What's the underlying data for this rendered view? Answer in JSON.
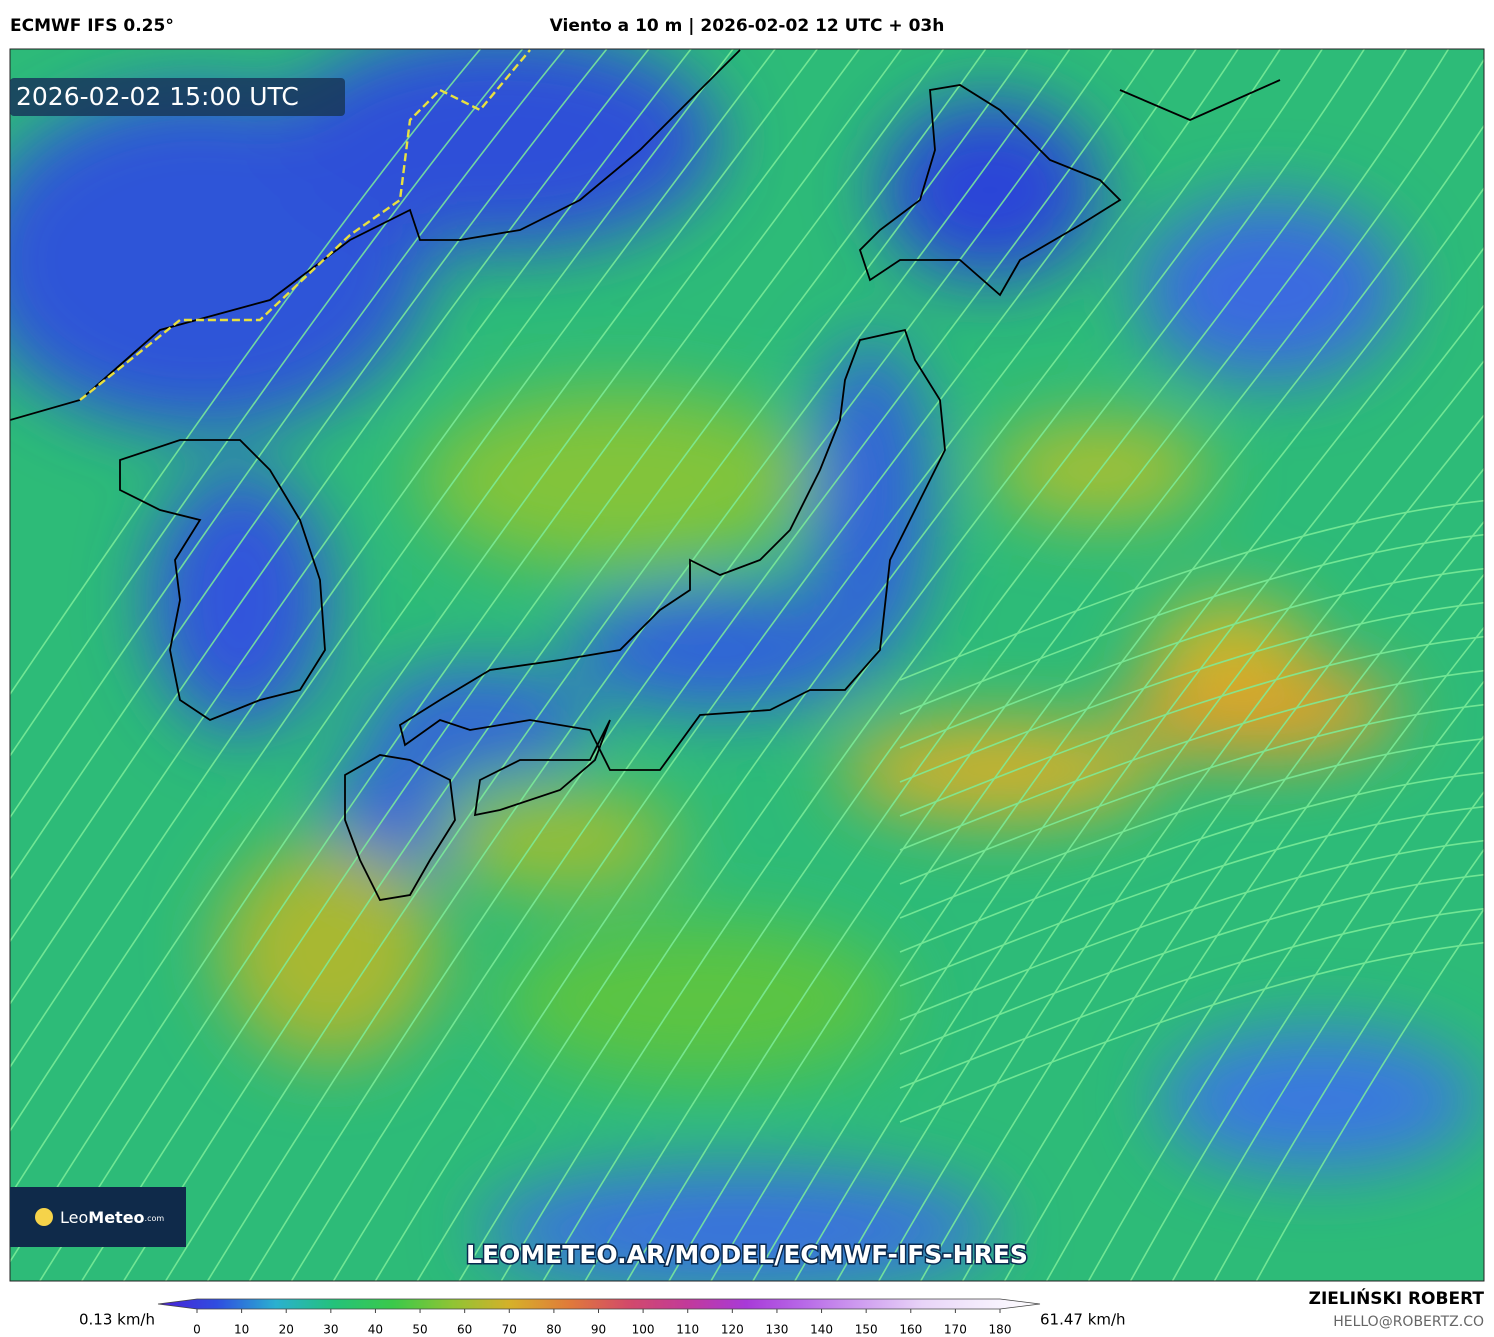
{
  "header": {
    "model": "ECMWF IFS 0.25°",
    "title": "Viento a 10 m | 2026-02-02 12 UTC + 03h"
  },
  "map": {
    "valid_time": "2026-02-02 15:00 UTC",
    "logo": {
      "name_light": "Leo",
      "name_bold": "Meteo",
      "suffix": ".com"
    },
    "url": "LEOMETEO.AR/MODEL/ECMWF-IFS-HRES"
  },
  "colorbar": {
    "min_label": "0.13 km/h",
    "max_label": "61.47 km/h",
    "lim": [
      0,
      180
    ],
    "ticks": [
      0,
      10,
      20,
      30,
      40,
      50,
      60,
      70,
      80,
      90,
      100,
      110,
      120,
      130,
      140,
      150,
      160,
      170,
      180
    ],
    "colors": [
      "#4b1fd6",
      "#2f4de0",
      "#2bb0d0",
      "#24c27a",
      "#3bc94a",
      "#8fc434",
      "#d6b02a",
      "#e07a3a",
      "#d24a6a",
      "#c23a9a",
      "#a83ad8",
      "#b86ae8",
      "#d0a0f0",
      "#e8d4f8",
      "#f4ecfc",
      "#ffffff"
    ]
  },
  "credit": {
    "author": "ZIELIŃSKI ROBERT",
    "email": "HELLO@ROBERTZ.CO"
  }
}
